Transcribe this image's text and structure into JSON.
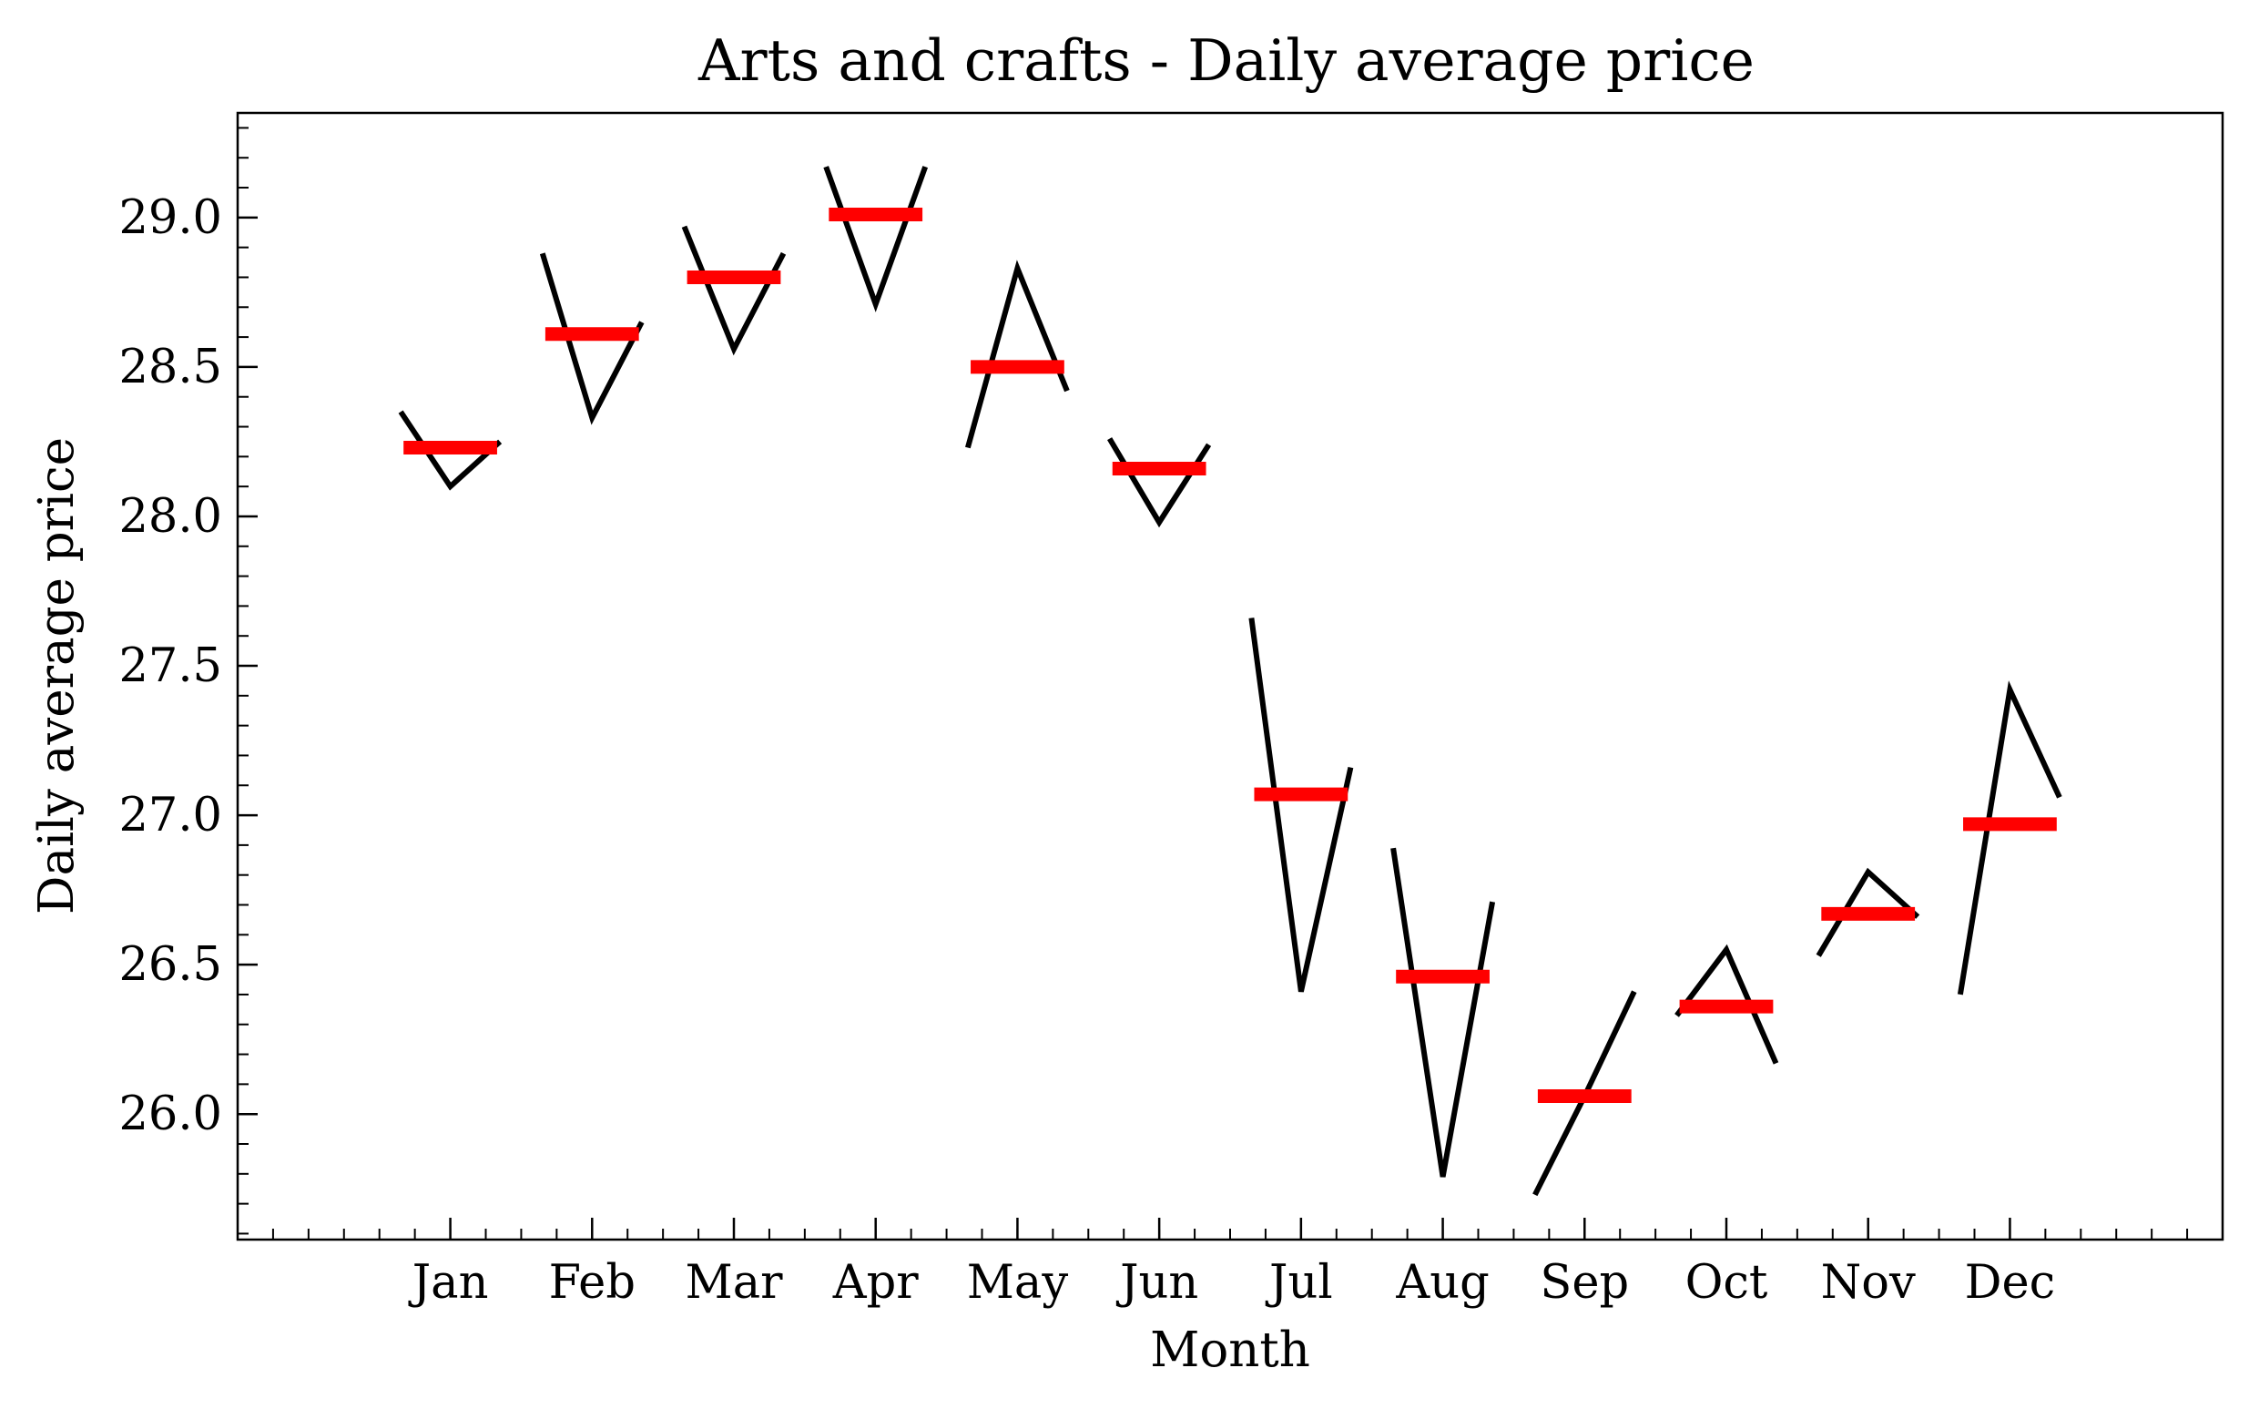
{
  "chart_data": {
    "type": "seasonal_subseries",
    "title": "Arts and crafts - Daily average price",
    "xlabel": "Month",
    "ylabel": "Daily average price",
    "ylim": [
      25.58,
      29.35
    ],
    "yticks": [
      "26.0",
      "26.5",
      "27.0",
      "27.5",
      "28.0",
      "28.5",
      "29.0"
    ],
    "categories": [
      "Jan",
      "Feb",
      "Mar",
      "Apr",
      "May",
      "Jun",
      "Jul",
      "Aug",
      "Sep",
      "Oct",
      "Nov",
      "Dec"
    ],
    "month_means": [
      28.23,
      28.61,
      28.8,
      29.01,
      28.5,
      28.16,
      27.07,
      26.46,
      26.06,
      26.36,
      26.67,
      26.97
    ],
    "subseries": [
      [
        28.35,
        28.1,
        28.25
      ],
      [
        28.88,
        28.33,
        28.65
      ],
      [
        28.97,
        28.56,
        28.88
      ],
      [
        29.17,
        28.71,
        29.17
      ],
      [
        28.23,
        28.83,
        28.42
      ],
      [
        28.26,
        27.98,
        28.24
      ],
      [
        27.66,
        26.41,
        27.16
      ],
      [
        26.89,
        25.79,
        26.71
      ],
      [
        25.73,
        26.06,
        26.41
      ],
      [
        26.33,
        26.55,
        26.17
      ],
      [
        26.53,
        26.81,
        26.66
      ],
      [
        26.4,
        27.42,
        27.06
      ]
    ],
    "colors": {
      "subseries": "#000000",
      "mean": "#ff0000"
    },
    "grid": false,
    "legend": "none"
  }
}
